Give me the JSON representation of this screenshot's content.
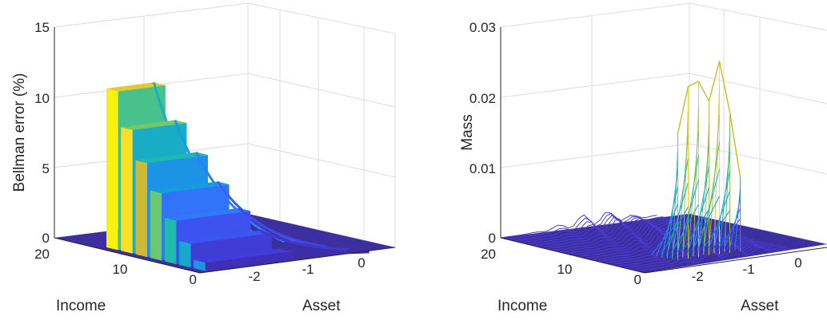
{
  "chart_data": [
    {
      "type": "surface",
      "title": "",
      "zlabel": "Bellman error (%)",
      "ylabel": "Income",
      "xlabel": "Asset",
      "zlim": [
        0,
        15
      ],
      "zticks": [
        "0",
        "5",
        "10",
        "15"
      ],
      "income_ticks": [
        "20",
        "10",
        "0"
      ],
      "asset_ticks": [
        "-2",
        "-1",
        "0"
      ],
      "grid": true,
      "colormap": "parula",
      "series": [
        {
          "income": 14,
          "peak_error": 11.3
        },
        {
          "income": 12,
          "peak_error": 8.8
        },
        {
          "income": 10,
          "peak_error": 6.7
        },
        {
          "income": 8,
          "peak_error": 4.8
        },
        {
          "income": 6,
          "peak_error": 3.1
        },
        {
          "income": 4,
          "peak_error": 1.7
        },
        {
          "income": 2,
          "peak_error": 0.6
        }
      ]
    },
    {
      "type": "mesh",
      "title": "",
      "zlabel": "Mass",
      "ylabel": "Income",
      "xlabel": "Asset",
      "zlim": [
        0,
        0.03
      ],
      "zticks": [
        "0",
        "0.01",
        "0.02",
        "0.03"
      ],
      "income_ticks": [
        "20",
        "10",
        "0"
      ],
      "asset_ticks": [
        "-2",
        "-1",
        "0"
      ],
      "grid": true,
      "colormap": "parula",
      "ridge_peaks": [
        0.018,
        0.0245,
        0.025,
        0.022,
        0.0275,
        0.02,
        0.0105
      ]
    }
  ]
}
